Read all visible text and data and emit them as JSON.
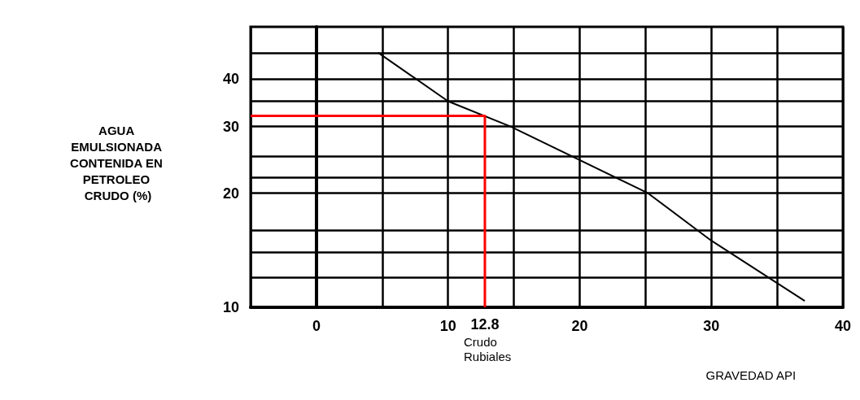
{
  "chart_data": {
    "type": "line",
    "xlabel": "GRAVEDAD API",
    "ylabel": "AGUA EMULSIONADA CONTENIDA EN PETROLEO CRUDO (%)",
    "xlim": [
      -5,
      40
    ],
    "xticks": [
      {
        "value": -5,
        "label": null
      },
      0,
      {
        "value": 5,
        "label": null
      },
      10,
      12.8,
      {
        "value": 15,
        "label": null
      },
      20,
      {
        "value": 25,
        "label": null
      },
      30,
      {
        "value": 35,
        "label": null
      },
      40
    ],
    "ylim": [
      10,
      55
    ],
    "yticks": [
      10,
      {
        "value": 12,
        "label": null
      },
      {
        "value": 14,
        "label": null
      },
      {
        "value": 16,
        "label": null
      },
      20,
      {
        "value": 22,
        "label": null
      },
      {
        "value": 25,
        "label": null
      },
      30,
      {
        "value": 35,
        "label": null
      },
      40,
      {
        "value": 47,
        "label": null
      }
    ],
    "log": "y",
    "grid": true,
    "marker": "none",
    "line_style": "solid",
    "series": [
      {
        "color": "#000000",
        "x": [
          4.7,
          10,
          14.75,
          25.2,
          30,
          37.1
        ],
        "values": [
          47,
          35,
          30,
          20,
          15,
          10.4
        ]
      },
      {
        "color": "#ff0000",
        "x": [
          -5,
          12.8,
          12.8
        ],
        "values": [
          32,
          32,
          10
        ]
      }
    ],
    "annotations": [
      {
        "text": "Crudo Rubiales",
        "x": 12.8,
        "y": 10
      }
    ]
  }
}
